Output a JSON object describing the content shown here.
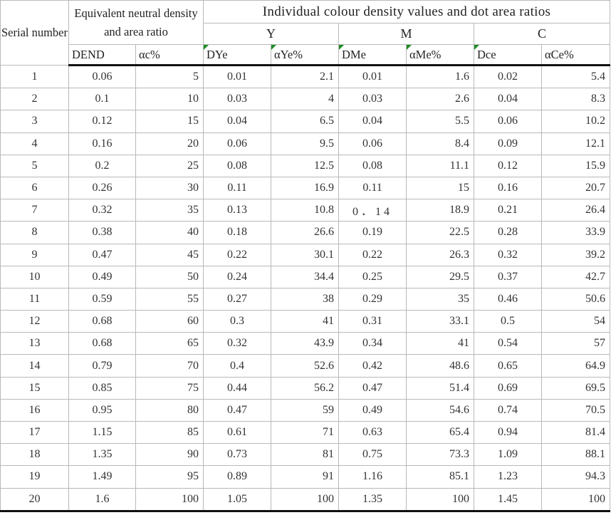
{
  "header": {
    "serial_label": "Serial number",
    "equiv_label": "Equivalent neutral density and area ratio",
    "individual_label": "Individual colour density values and dot area ratios",
    "inks": [
      "Y",
      "M",
      "C"
    ],
    "subs": [
      "DEND",
      "αc%",
      "DYe",
      "αYe%",
      "DMe",
      "αMe%",
      "Dce",
      "αCe%"
    ]
  },
  "colors": {
    "flag": "#1f8b24",
    "rule": "#111111",
    "grid": "#b9b9b9"
  },
  "rows": [
    [
      "1",
      "0.06",
      "5",
      "0.01",
      "2.1",
      "0.01",
      "1.6",
      "0.02",
      "5.4"
    ],
    [
      "2",
      "0.1",
      "10",
      "0.03",
      "4",
      "0.03",
      "2.6",
      "0.04",
      "8.3"
    ],
    [
      "3",
      "0.12",
      "15",
      "0.04",
      "6.5",
      "0.04",
      "5.5",
      "0.06",
      "10.2"
    ],
    [
      "4",
      "0.16",
      "20",
      "0.06",
      "9.5",
      "0.06",
      "8.4",
      "0.09",
      "12.1"
    ],
    [
      "5",
      "0.2",
      "25",
      "0.08",
      "12.5",
      "0.08",
      "11.1",
      "0.12",
      "15.9"
    ],
    [
      "6",
      "0.26",
      "30",
      "0.11",
      "16.9",
      "0.11",
      "15",
      "0.16",
      "20.7"
    ],
    [
      "7",
      "0.32",
      "35",
      "0.13",
      "10.8",
      "0．14",
      "18.9",
      "0.21",
      "26.4"
    ],
    [
      "8",
      "0.38",
      "40",
      "0.18",
      "26.6",
      "0.19",
      "22.5",
      "0.28",
      "33.9"
    ],
    [
      "9",
      "0.47",
      "45",
      "0.22",
      "30.1",
      "0.22",
      "26.3",
      "0.32",
      "39.2"
    ],
    [
      "10",
      "0.49",
      "50",
      "0.24",
      "34.4",
      "0.25",
      "29.5",
      "0.37",
      "42.7"
    ],
    [
      "11",
      "0.59",
      "55",
      "0.27",
      "38",
      "0.29",
      "35",
      "0.46",
      "50.6"
    ],
    [
      "12",
      "0.68",
      "60",
      "0.3",
      "41",
      "0.31",
      "33.1",
      "0.5",
      "54"
    ],
    [
      "13",
      "0.68",
      "65",
      "0.32",
      "43.9",
      "0.34",
      "41",
      "0.54",
      "57"
    ],
    [
      "14",
      "0.79",
      "70",
      "0.4",
      "52.6",
      "0.42",
      "48.6",
      "0.65",
      "64.9"
    ],
    [
      "15",
      "0.85",
      "75",
      "0.44",
      "56.2",
      "0.47",
      "51.4",
      "0.69",
      "69.5"
    ],
    [
      "16",
      "0.95",
      "80",
      "0.47",
      "59",
      "0.49",
      "54.6",
      "0.74",
      "70.5"
    ],
    [
      "17",
      "1.15",
      "85",
      "0.61",
      "71",
      "0.63",
      "65.4",
      "0.94",
      "81.4"
    ],
    [
      "18",
      "1.35",
      "90",
      "0.73",
      "81",
      "0.75",
      "73.3",
      "1.09",
      "88.1"
    ],
    [
      "19",
      "1.49",
      "95",
      "0.89",
      "91",
      "1.16",
      "85.1",
      "1.23",
      "94.3"
    ],
    [
      "20",
      "1.6",
      "100",
      "1.05",
      "100",
      "1.35",
      "100",
      "1.45",
      "100"
    ]
  ]
}
